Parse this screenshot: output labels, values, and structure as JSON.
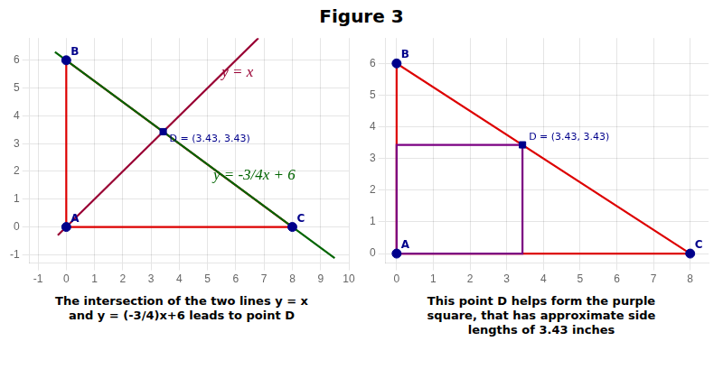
{
  "chart_data": [
    {
      "type": "scatter",
      "title": "Figure 3",
      "xlim": [
        -1.3,
        10
      ],
      "ylim": [
        -1.3,
        6.8
      ],
      "xticks": [
        -1,
        0,
        1,
        2,
        3,
        4,
        5,
        6,
        7,
        8,
        9,
        10
      ],
      "yticks": [
        -1,
        0,
        1,
        2,
        3,
        4,
        5,
        6
      ],
      "grid": true,
      "series": [
        {
          "type": "line",
          "color": "#dd0000",
          "x": [
            0,
            0,
            8,
            0
          ],
          "values": [
            0,
            6,
            0,
            0
          ]
        },
        {
          "type": "line",
          "color": "#990033",
          "x": [
            -0.3,
            6.8
          ],
          "values": [
            -0.3,
            6.8
          ]
        },
        {
          "type": "line",
          "color": "#006400",
          "x": [
            -0.4,
            9.5
          ],
          "values": [
            6.3,
            -1.125
          ]
        },
        {
          "type": "scatter",
          "marker": "circle",
          "color": "#00008B",
          "x": [
            0,
            0,
            8
          ],
          "values": [
            0,
            6,
            0
          ],
          "labels": [
            "A",
            "B",
            "C"
          ]
        },
        {
          "type": "scatter",
          "marker": "square",
          "color": "#00008B",
          "x": [
            3.43
          ],
          "values": [
            3.43
          ],
          "labels": [
            "D = (3.43, 3.43)"
          ]
        }
      ],
      "annotations": [
        {
          "text": "y = x",
          "x": 5.5,
          "y": 5.4,
          "color": "#990033"
        },
        {
          "text": "y = -3/4x + 6",
          "x": 5.2,
          "y": 1.7,
          "color": "#006400"
        }
      ],
      "caption": "The intersection of the two lines y = x\nand y = (-3/4)x+6 leads to point D"
    },
    {
      "type": "scatter",
      "xlim": [
        -0.3,
        8.5
      ],
      "ylim": [
        -0.3,
        6.8
      ],
      "xticks": [
        0,
        1,
        2,
        3,
        4,
        5,
        6,
        7,
        8
      ],
      "yticks": [
        0,
        1,
        2,
        3,
        4,
        5,
        6
      ],
      "grid": true,
      "series": [
        {
          "type": "line",
          "color": "#dd0000",
          "x": [
            0,
            0,
            8,
            0
          ],
          "values": [
            0,
            6,
            0,
            0
          ]
        },
        {
          "type": "line",
          "color": "#7B0082",
          "x": [
            0,
            3.43,
            3.43,
            0,
            0
          ],
          "values": [
            0,
            0,
            3.43,
            3.43,
            0
          ]
        },
        {
          "type": "scatter",
          "marker": "circle",
          "color": "#00008B",
          "x": [
            0,
            0,
            8
          ],
          "values": [
            0,
            6,
            0
          ],
          "labels": [
            "A",
            "B",
            "C"
          ]
        },
        {
          "type": "scatter",
          "marker": "square",
          "color": "#00008B",
          "x": [
            3.43
          ],
          "values": [
            3.43
          ],
          "labels": [
            "D = (3.43, 3.43)"
          ]
        }
      ],
      "caption": "This point D helps form the purple\nsquare, that has approximate side\nlengths of 3.43 inches"
    }
  ]
}
